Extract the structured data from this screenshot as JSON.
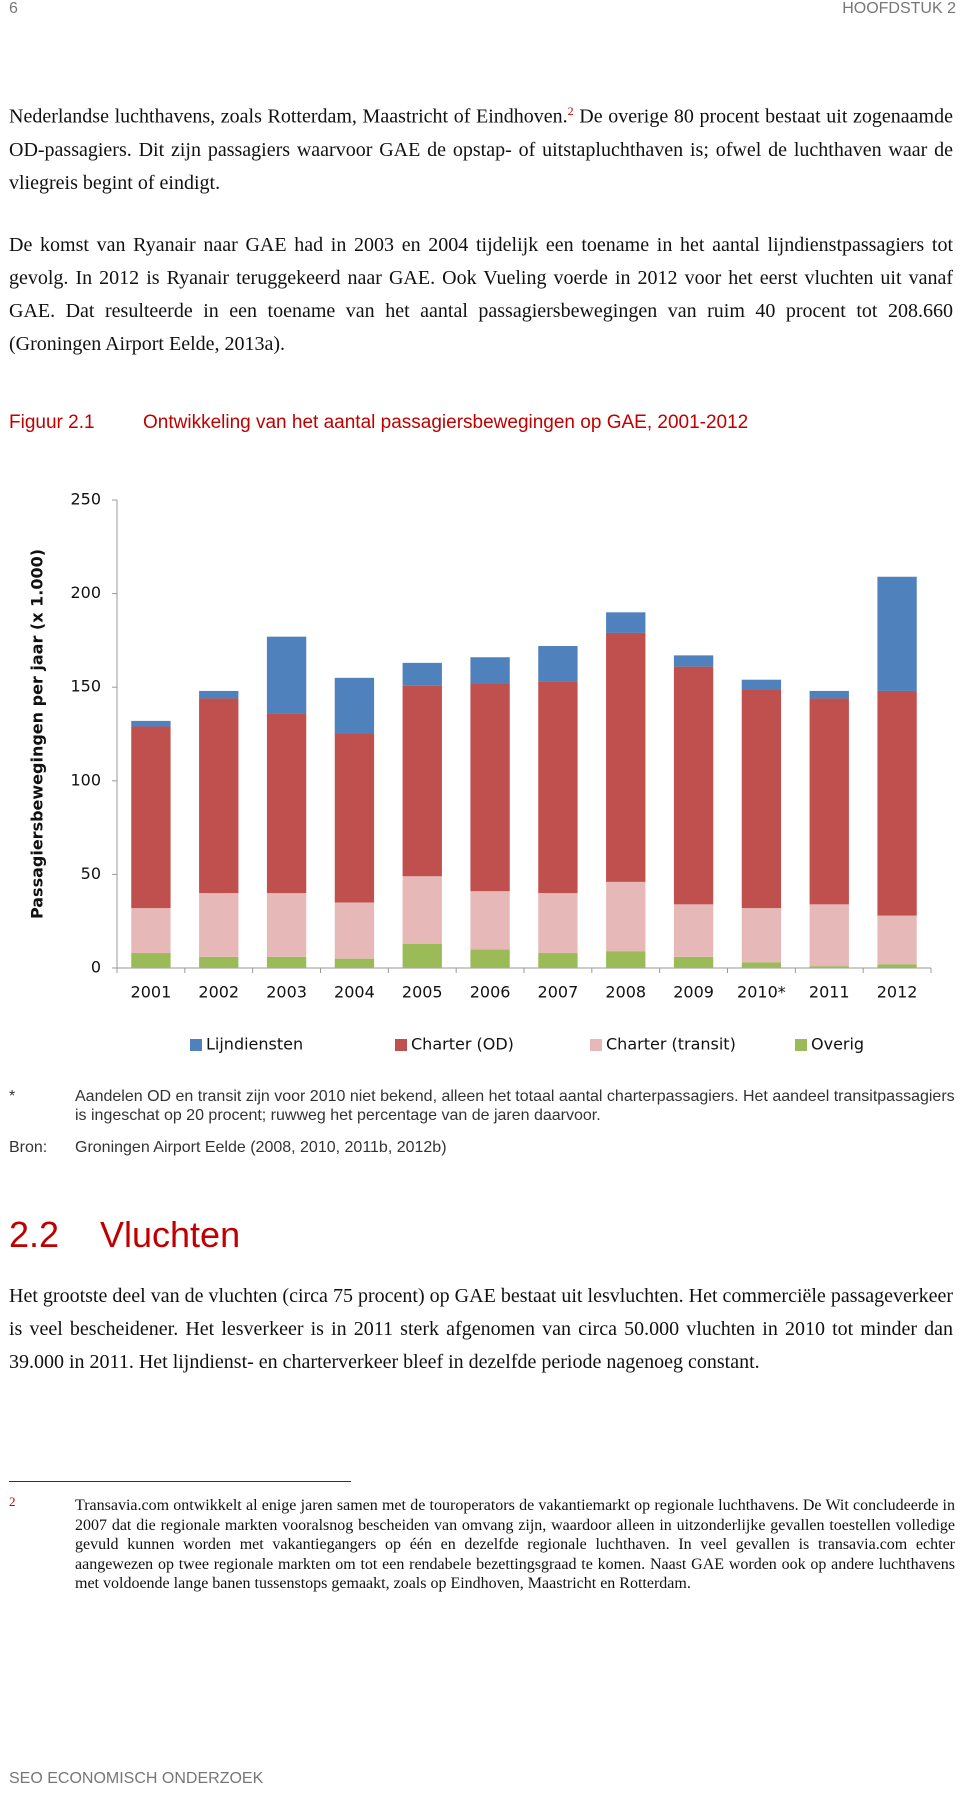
{
  "header": {
    "page_number": "6",
    "chapter": "HOOFDSTUK 2"
  },
  "paragraphs": [
    {
      "before": "Nederlandse luchthavens, zoals Rotterdam, Maastricht of Eindhoven.",
      "footnote_ref": "2",
      "after": " De overige 80 procent bestaat uit zogenaamde OD-passagiers. Dit zijn passagiers waarvoor GAE de opstap- of uitstapluchthaven is; ofwel de luchthaven waar de vliegreis begint of eindigt."
    },
    {
      "text": "De komst van Ryanair naar GAE had in 2003 en 2004 tijdelijk een toename in het aantal lijndienstpassagiers tot gevolg. In 2012 is Ryanair teruggekeerd naar GAE. Ook Vueling voerde in 2012 voor het eerst vluchten uit vanaf GAE. Dat resulteerde in een toename van het aantal passagiersbewegingen van ruim 40 procent tot 208.660 (Groningen Airport Eelde, 2013a)."
    }
  ],
  "figure": {
    "label": "Figuur 2.1",
    "title": "Ontwikkeling van het aantal passagiersbewegingen op GAE, 2001-2012"
  },
  "chart_data": {
    "type": "bar",
    "stacked": true,
    "y_label": "Passagiersbewegingen  per jaar  (x 1.000)",
    "categories": [
      "2001",
      "2002",
      "2003",
      "2004",
      "2005",
      "2006",
      "2007",
      "2008",
      "2009",
      "2010*",
      "2011",
      "2012"
    ],
    "series": [
      {
        "name": "Overig",
        "color": "#9bbb59",
        "values": [
          8,
          6,
          6,
          5,
          13,
          10,
          8,
          9,
          6,
          3,
          1,
          2
        ]
      },
      {
        "name": "Charter (transit)",
        "color": "#e6b9b8",
        "values": [
          24,
          34,
          34,
          30,
          36,
          31,
          32,
          37,
          28,
          29,
          33,
          26
        ]
      },
      {
        "name": "Charter (OD)",
        "color": "#c0504d",
        "values": [
          97,
          104,
          96,
          90,
          102,
          111,
          113,
          133,
          127,
          117,
          110,
          120
        ]
      },
      {
        "name": "Lijndiensten",
        "color": "#4f81bd",
        "values": [
          3,
          4,
          41,
          30,
          12,
          14,
          19,
          11,
          6,
          5,
          4,
          61
        ]
      }
    ],
    "legend_order": [
      3,
      2,
      1,
      0
    ],
    "ylim": [
      0,
      250
    ],
    "yticks": [
      0,
      50,
      100,
      150,
      200,
      250
    ],
    "grid": false,
    "legend": "bottom"
  },
  "notes": [
    {
      "marker": "*",
      "text": "Aandelen OD en transit zijn voor 2010 niet bekend, alleen het totaal aantal charterpassagiers. Het aandeel transitpassagiers is ingeschat op 20 procent; ruwweg het percentage van de jaren daarvoor."
    },
    {
      "marker": "Bron:",
      "text": "Groningen Airport Eelde (2008, 2010, 2011b, 2012b)"
    }
  ],
  "section": {
    "number": "2.2",
    "title": "Vluchten",
    "text": "Het grootste deel van de vluchten (circa 75 procent) op GAE bestaat uit lesvluchten. Het commerciële passageverkeer is veel bescheidener. Het lesverkeer is in 2011 sterk afgenomen van circa 50.000 vluchten in 2010 tot minder dan 39.000 in 2011. Het lijndienst- en charterverkeer bleef in dezelfde periode nagenoeg constant."
  },
  "footnote": {
    "marker": "2",
    "text": "Transavia.com ontwikkelt al enige jaren samen met de touroperators de vakantiemarkt op regionale luchthavens. De Wit concludeerde in 2007 dat die regionale markten vooralsnog bescheiden van omvang zijn, waardoor alleen in uitzonderlijke gevallen toestellen volledige gevuld kunnen worden met vakantiegangers op één en dezelfde regionale luchthaven. In veel gevallen is transavia.com echter aangewezen op twee regionale markten om tot een rendabele bezettingsgraad te komen. Naast GAE worden ook op andere luchthavens met voldoende lange banen tussenstops gemaakt, zoals op Eindhoven, Maastricht en Rotterdam."
  },
  "footer": {
    "text": "SEO ECONOMISCH ONDERZOEK"
  }
}
